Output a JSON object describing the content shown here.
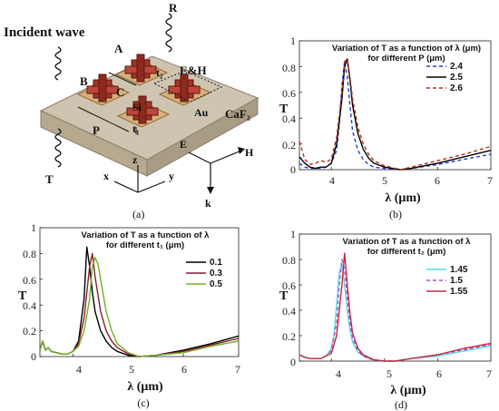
{
  "captions": [
    "(a)",
    "(b)",
    "(c)",
    "(d)"
  ],
  "diagram": {
    "labels": {
      "incident": "Incident wave",
      "R": "R",
      "T": "T",
      "A": "A",
      "B": "B",
      "C": "C",
      "t2": "t₂",
      "EH": "E&H",
      "Si": "Si",
      "Au": "Au",
      "CaF2": "CaF₂",
      "P": "P",
      "t1": "t₁",
      "z": "z",
      "x": "x",
      "y": "y",
      "E": "E",
      "H": "H",
      "k": "k"
    },
    "colors": {
      "substrate": "#cfc4b0",
      "gold": "#d8b07a",
      "silicon": "#a33428"
    }
  },
  "chart_data": [
    {
      "id": "b",
      "type": "line",
      "title_lines": [
        "Variation of T as a function of λ (μm)",
        "for different P (μm)"
      ],
      "xlabel": "λ (μm)",
      "ylabel": "T",
      "xlim": [
        3.4,
        7
      ],
      "ylim": [
        0,
        1
      ],
      "xticks": [
        "4",
        "5",
        "6",
        "7"
      ],
      "yticks": [
        "0",
        "0.2",
        "0.4",
        "0.6",
        "0.8",
        "1"
      ],
      "legend_position": "right",
      "series": [
        {
          "name": "2.4",
          "color": "#1f3fd6",
          "dash": "dashed",
          "x": [
            3.4,
            3.5,
            3.6,
            3.7,
            3.8,
            3.9,
            4.0,
            4.1,
            4.15,
            4.2,
            4.25,
            4.3,
            4.35,
            4.4,
            4.5,
            4.6,
            4.7,
            4.8,
            5.0,
            5.2,
            5.3,
            5.5,
            6.0,
            6.5,
            7.0
          ],
          "y": [
            0.05,
            0.02,
            0.01,
            0.01,
            0.01,
            0.02,
            0.05,
            0.15,
            0.35,
            0.66,
            0.84,
            0.72,
            0.5,
            0.3,
            0.15,
            0.08,
            0.04,
            0.02,
            0.01,
            0.005,
            0.0,
            0.01,
            0.04,
            0.08,
            0.12
          ]
        },
        {
          "name": "2.5",
          "color": "#000000",
          "dash": "solid",
          "x": [
            3.4,
            3.5,
            3.6,
            3.7,
            3.8,
            3.9,
            4.0,
            4.1,
            4.2,
            4.25,
            4.3,
            4.35,
            4.4,
            4.5,
            4.6,
            4.7,
            4.8,
            5.0,
            5.3,
            5.5,
            6.0,
            6.5,
            7.0
          ],
          "y": [
            0.1,
            0.05,
            0.02,
            0.01,
            0.02,
            0.02,
            0.05,
            0.2,
            0.55,
            0.8,
            0.86,
            0.7,
            0.5,
            0.28,
            0.16,
            0.09,
            0.05,
            0.02,
            0.0,
            0.01,
            0.05,
            0.1,
            0.15
          ]
        },
        {
          "name": "2.6",
          "color": "#b5301c",
          "dash": "dashed",
          "x": [
            3.4,
            3.45,
            3.5,
            3.6,
            3.7,
            3.8,
            3.9,
            4.0,
            4.1,
            4.2,
            4.25,
            4.3,
            4.35,
            4.4,
            4.5,
            4.6,
            4.7,
            4.8,
            5.0,
            5.3,
            5.5,
            6.0,
            6.5,
            7.0
          ],
          "y": [
            0.22,
            0.15,
            0.08,
            0.04,
            0.05,
            0.07,
            0.06,
            0.08,
            0.25,
            0.6,
            0.84,
            0.86,
            0.72,
            0.55,
            0.33,
            0.2,
            0.12,
            0.07,
            0.03,
            0.0,
            0.02,
            0.07,
            0.12,
            0.18
          ]
        }
      ]
    },
    {
      "id": "c",
      "type": "line",
      "title_lines": [
        "Variation of T as a function of λ",
        "for different t₁ (μm)"
      ],
      "xlabel": "λ (μm)",
      "ylabel": "T",
      "xlim": [
        3.4,
        7
      ],
      "ylim": [
        0,
        1
      ],
      "xticks": [
        "4",
        "5",
        "6",
        "7"
      ],
      "yticks": [
        "0",
        "0.2",
        "0.4",
        "0.6",
        "0.8",
        "1"
      ],
      "legend_position": "right",
      "series": [
        {
          "name": "0.1",
          "color": "#000000",
          "dash": "solid",
          "x": [
            3.4,
            3.45,
            3.5,
            3.55,
            3.6,
            3.7,
            3.8,
            3.9,
            4.0,
            4.1,
            4.2,
            4.25,
            4.3,
            4.35,
            4.4,
            4.5,
            4.6,
            4.7,
            4.8,
            5.0,
            5.2,
            5.5,
            6.0,
            6.5,
            7.0
          ],
          "y": [
            0.05,
            0.12,
            0.05,
            0.07,
            0.04,
            0.03,
            0.02,
            0.02,
            0.04,
            0.12,
            0.45,
            0.85,
            0.7,
            0.5,
            0.35,
            0.2,
            0.12,
            0.07,
            0.04,
            0.01,
            0.0,
            0.01,
            0.05,
            0.1,
            0.16
          ]
        },
        {
          "name": "0.3",
          "color": "#8a1c2c",
          "dash": "solid",
          "x": [
            3.4,
            3.45,
            3.5,
            3.55,
            3.6,
            3.7,
            3.8,
            3.9,
            4.0,
            4.1,
            4.2,
            4.3,
            4.35,
            4.4,
            4.5,
            4.6,
            4.7,
            4.8,
            5.0,
            5.2,
            5.5,
            6.0,
            6.5,
            7.0
          ],
          "y": [
            0.05,
            0.12,
            0.05,
            0.07,
            0.04,
            0.03,
            0.02,
            0.02,
            0.04,
            0.1,
            0.3,
            0.7,
            0.8,
            0.62,
            0.35,
            0.2,
            0.12,
            0.07,
            0.02,
            0.0,
            0.01,
            0.04,
            0.09,
            0.14
          ]
        },
        {
          "name": "0.5",
          "color": "#6fb023",
          "dash": "solid",
          "x": [
            3.4,
            3.45,
            3.5,
            3.55,
            3.6,
            3.7,
            3.8,
            3.9,
            4.0,
            4.1,
            4.2,
            4.3,
            4.35,
            4.4,
            4.45,
            4.5,
            4.6,
            4.7,
            4.8,
            5.0,
            5.2,
            5.5,
            6.0,
            6.5,
            7.0
          ],
          "y": [
            0.05,
            0.12,
            0.05,
            0.07,
            0.04,
            0.03,
            0.02,
            0.02,
            0.04,
            0.08,
            0.2,
            0.45,
            0.7,
            0.77,
            0.72,
            0.6,
            0.35,
            0.2,
            0.1,
            0.03,
            0.0,
            0.01,
            0.03,
            0.08,
            0.12
          ]
        }
      ]
    },
    {
      "id": "d",
      "type": "line",
      "title_lines": [
        "Variation of T as a function of λ",
        "for different t₂ (μm)"
      ],
      "xlabel": "λ (μm)",
      "ylabel": "T",
      "xlim": [
        3.4,
        7
      ],
      "ylim": [
        0,
        1
      ],
      "xticks": [
        "4",
        "5",
        "6",
        "7"
      ],
      "yticks": [
        "0",
        "0.2",
        "0.4",
        "0.6",
        "0.8",
        "1"
      ],
      "legend_position": "right",
      "series": [
        {
          "name": "1.45",
          "color": "#5ad7e8",
          "dash": "solid",
          "x": [
            3.4,
            3.5,
            3.6,
            3.7,
            3.8,
            3.9,
            4.0,
            4.05,
            4.1,
            4.15,
            4.2,
            4.25,
            4.3,
            4.35,
            4.4,
            4.5,
            4.6,
            4.7,
            4.8,
            5.0,
            5.2,
            5.5,
            6.0,
            6.5,
            7.0
          ],
          "y": [
            0.05,
            0.03,
            0.02,
            0.02,
            0.02,
            0.04,
            0.1,
            0.2,
            0.45,
            0.7,
            0.76,
            0.6,
            0.4,
            0.25,
            0.15,
            0.07,
            0.04,
            0.02,
            0.01,
            0.0,
            0.0,
            0.02,
            0.04,
            0.08,
            0.12
          ]
        },
        {
          "name": "1.5",
          "color": "#b04ad8",
          "dash": "dashed",
          "x": [
            3.4,
            3.5,
            3.6,
            3.7,
            3.8,
            3.9,
            4.0,
            4.1,
            4.15,
            4.2,
            4.25,
            4.3,
            4.35,
            4.4,
            4.5,
            4.6,
            4.7,
            4.8,
            5.0,
            5.2,
            5.5,
            6.0,
            6.5,
            7.0
          ],
          "y": [
            0.05,
            0.03,
            0.02,
            0.02,
            0.02,
            0.04,
            0.08,
            0.3,
            0.6,
            0.8,
            0.72,
            0.5,
            0.3,
            0.18,
            0.08,
            0.04,
            0.02,
            0.01,
            0.0,
            0.0,
            0.02,
            0.05,
            0.09,
            0.13
          ]
        },
        {
          "name": "1.55",
          "color": "#c22a3a",
          "dash": "solid",
          "x": [
            3.4,
            3.5,
            3.6,
            3.7,
            3.8,
            3.9,
            4.0,
            4.1,
            4.2,
            4.25,
            4.3,
            4.35,
            4.4,
            4.5,
            4.6,
            4.7,
            4.8,
            5.0,
            5.2,
            5.5,
            6.0,
            6.5,
            7.0
          ],
          "y": [
            0.05,
            0.03,
            0.02,
            0.02,
            0.02,
            0.04,
            0.06,
            0.2,
            0.6,
            0.85,
            0.6,
            0.38,
            0.22,
            0.1,
            0.05,
            0.03,
            0.01,
            0.0,
            0.0,
            0.02,
            0.05,
            0.1,
            0.14
          ]
        }
      ]
    }
  ]
}
